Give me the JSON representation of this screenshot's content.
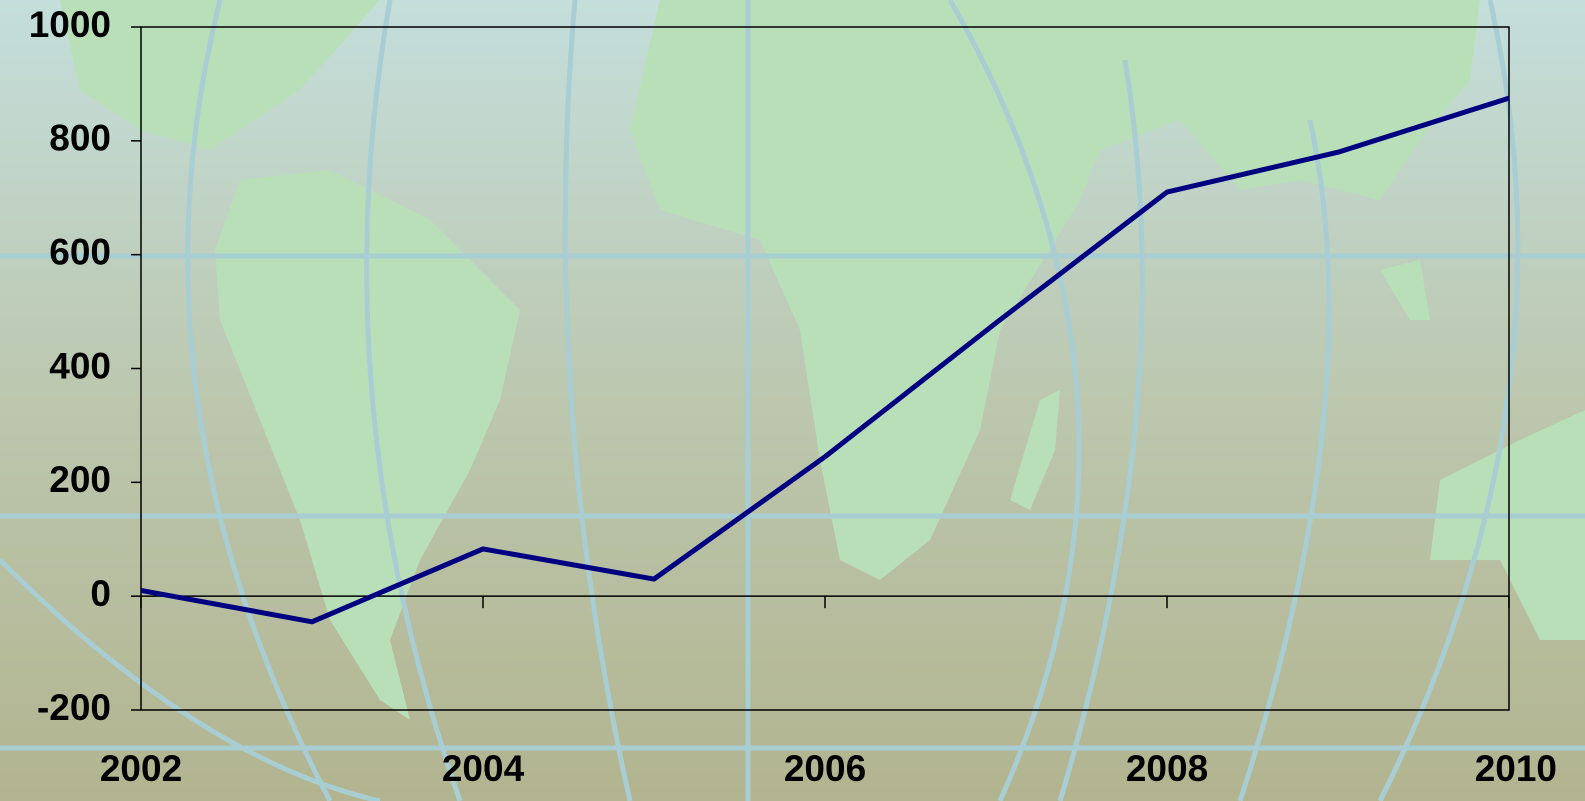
{
  "chart_data": {
    "type": "line",
    "x": [
      2002,
      2003,
      2004,
      2005,
      2006,
      2007,
      2008,
      2009,
      2010
    ],
    "series": [
      {
        "color": "#000080",
        "values": [
          10,
          -45,
          83,
          30,
          245,
          480,
          710,
          780,
          875
        ]
      }
    ],
    "xlim": [
      2002,
      2010
    ],
    "xticks": [
      2002,
      2004,
      2006,
      2008,
      2010
    ],
    "ylim": [
      -200,
      1000
    ],
    "yticks": [
      -200,
      0,
      200,
      400,
      600,
      800,
      1000
    ]
  }
}
